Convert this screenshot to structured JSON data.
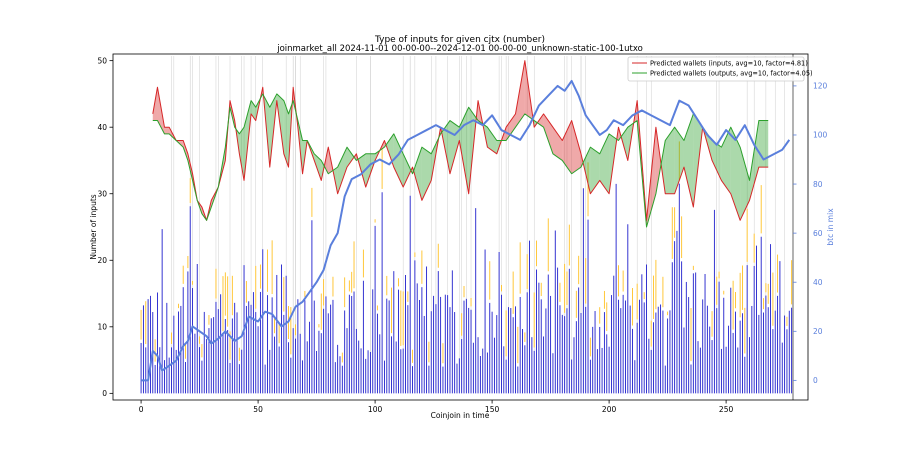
{
  "chart_data": {
    "type": "line",
    "title": "Type of inputs for given cjtx (number)",
    "subtitle": "joinmarket_all 2024-11-01 00-00-00--2024-12-01 00-00-00_unknown-static-100-1utxo",
    "xlabel": "Coinjoin in time",
    "ylabel": "Number of inputs",
    "y2label": "btc in mix",
    "xlim": [
      -12,
      285
    ],
    "ylim": [
      -1,
      51
    ],
    "y2lim": [
      -8,
      133
    ],
    "xticks": [
      0,
      50,
      100,
      150,
      200,
      250
    ],
    "yticks": [
      0,
      10,
      20,
      30,
      40,
      50
    ],
    "y2ticks": [
      0,
      20,
      40,
      60,
      80,
      100,
      120
    ],
    "legend_position": "top-right",
    "legend": [
      "Predicted wallets (inputs, avg=10, factor=4.81)",
      "Predicted wallets (outputs, avg=10, factor=4.05)"
    ],
    "colors": {
      "inputs": "#d62728",
      "outputs": "#2ca02c",
      "btc": "#5a7fdc",
      "bars": "#1f1fcc",
      "bars_secondary": "#ffc125",
      "vlines": "#cfcfcf"
    },
    "series": [
      {
        "name": "Predicted wallets (inputs, avg=10, factor=4.81)",
        "x": [
          5,
          7,
          10,
          12,
          15,
          18,
          20,
          22,
          24,
          26,
          28,
          30,
          33,
          36,
          38,
          40,
          42,
          44,
          47,
          49,
          52,
          55,
          58,
          61,
          63,
          65,
          67,
          69,
          71,
          74,
          77,
          80,
          84,
          88,
          92,
          96,
          100,
          104,
          108,
          112,
          116,
          120,
          124,
          128,
          132,
          136,
          140,
          144,
          148,
          152,
          156,
          160,
          164,
          168,
          172,
          176,
          180,
          184,
          188,
          192,
          196,
          200,
          204,
          208,
          212,
          216,
          220,
          224,
          228,
          232,
          236,
          240,
          244,
          248,
          252,
          256,
          260,
          264,
          268
        ],
        "values": [
          42,
          46,
          40,
          40,
          38,
          38,
          36,
          33,
          29,
          28,
          26,
          29,
          31,
          35,
          44,
          41,
          36,
          32,
          42,
          41,
          46,
          34,
          44,
          36,
          34,
          46,
          40,
          33,
          38,
          35,
          32,
          37,
          30,
          34,
          36,
          31,
          35,
          38,
          34,
          31,
          34,
          29,
          32,
          40,
          33,
          38,
          30,
          44,
          37,
          36,
          40,
          42,
          50,
          40,
          42,
          40,
          38,
          41,
          36,
          30,
          32,
          30,
          40,
          35,
          44,
          26,
          40,
          30,
          30,
          34,
          28,
          40,
          35,
          32,
          30,
          26,
          29,
          34,
          34
        ]
      },
      {
        "name": "Predicted wallets (outputs, avg=10, factor=4.05)",
        "x": [
          5,
          7,
          10,
          12,
          15,
          18,
          20,
          22,
          24,
          26,
          28,
          30,
          33,
          36,
          38,
          40,
          42,
          44,
          47,
          49,
          52,
          55,
          58,
          61,
          63,
          65,
          67,
          69,
          71,
          74,
          77,
          80,
          84,
          88,
          92,
          96,
          100,
          104,
          108,
          112,
          116,
          120,
          124,
          128,
          132,
          136,
          140,
          144,
          148,
          152,
          156,
          160,
          164,
          168,
          172,
          176,
          180,
          184,
          188,
          192,
          196,
          200,
          204,
          208,
          212,
          216,
          220,
          224,
          228,
          232,
          236,
          240,
          244,
          248,
          252,
          256,
          260,
          264,
          268
        ],
        "values": [
          41,
          41,
          39,
          39,
          38,
          37,
          35,
          32,
          29,
          27,
          26,
          28,
          31,
          37,
          43,
          40,
          39,
          40,
          44,
          43,
          45,
          43,
          45,
          44,
          42,
          44,
          41,
          38,
          38,
          36,
          35,
          33,
          34,
          37,
          35,
          36,
          36,
          37,
          39,
          36,
          33,
          37,
          36,
          39,
          41,
          40,
          43,
          41,
          40,
          38,
          38,
          40,
          42,
          41,
          40,
          36,
          35,
          33,
          34,
          37,
          36,
          39,
          38,
          40,
          41,
          25,
          30,
          38,
          40,
          38,
          42,
          40,
          38,
          37,
          40,
          37,
          32,
          41,
          41
        ]
      },
      {
        "name": "btc in mix",
        "axis": "right",
        "x": [
          0,
          3,
          5,
          7,
          9,
          12,
          15,
          18,
          20,
          22,
          25,
          28,
          30,
          33,
          36,
          40,
          43,
          46,
          50,
          53,
          56,
          60,
          63,
          66,
          69,
          72,
          75,
          78,
          81,
          84,
          87,
          90,
          94,
          98,
          102,
          106,
          110,
          114,
          118,
          122,
          126,
          130,
          134,
          138,
          142,
          146,
          150,
          154,
          158,
          162,
          166,
          170,
          174,
          178,
          181,
          184,
          187,
          190,
          193,
          196,
          199,
          202,
          206,
          210,
          214,
          218,
          222,
          226,
          230,
          234,
          238,
          242,
          246,
          250,
          254,
          258,
          262,
          266,
          270,
          274,
          277
        ],
        "values": [
          0,
          0,
          12,
          10,
          4,
          6,
          8,
          14,
          16,
          22,
          20,
          18,
          15,
          17,
          20,
          16,
          18,
          26,
          24,
          28,
          27,
          22,
          24,
          30,
          32,
          36,
          40,
          45,
          55,
          60,
          75,
          82,
          84,
          88,
          90,
          88,
          92,
          98,
          100,
          102,
          104,
          102,
          100,
          104,
          106,
          104,
          108,
          102,
          100,
          98,
          104,
          112,
          116,
          120,
          118,
          122,
          116,
          108,
          104,
          100,
          102,
          106,
          104,
          108,
          110,
          108,
          106,
          104,
          114,
          112,
          106,
          100,
          96,
          102,
          98,
          104,
          96,
          90,
          92,
          94,
          98
        ]
      }
    ]
  }
}
